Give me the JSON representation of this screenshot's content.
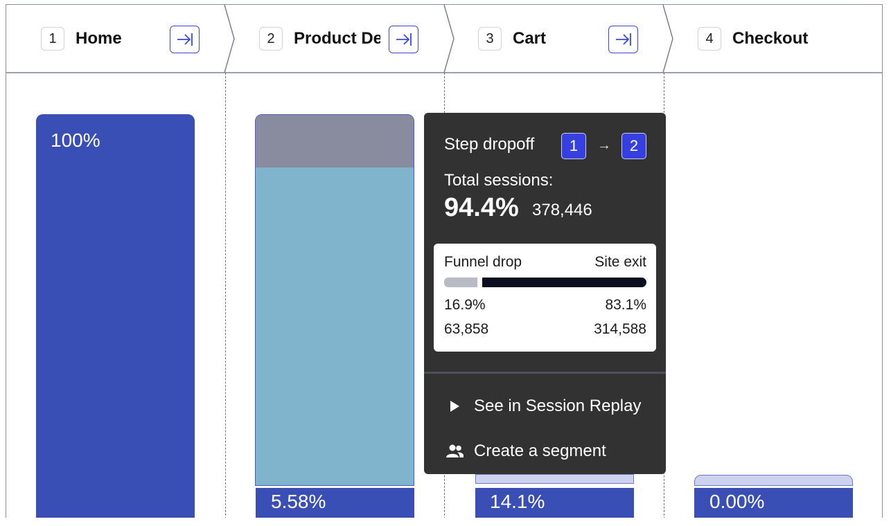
{
  "steps": [
    {
      "num": "1",
      "title": "Home"
    },
    {
      "num": "2",
      "title": "Product Details"
    },
    {
      "num": "3",
      "title": "Cart"
    },
    {
      "num": "4",
      "title": "Checkout"
    }
  ],
  "bars": {
    "home_label": "100%",
    "product_details_label": "5.58%",
    "cart_label": "14.1%",
    "checkout_label": "0.00%"
  },
  "tooltip": {
    "title": "Step dropoff",
    "from_step": "1",
    "arrow": "→",
    "to_step": "2",
    "total_label": "Total sessions:",
    "total_pct": "94.4%",
    "total_count": "378,446",
    "breakdown": {
      "left_label": "Funnel drop",
      "right_label": "Site exit",
      "left_pct": "16.9%",
      "right_pct": "83.1%",
      "left_count": "63,858",
      "right_count": "314,588",
      "left_fraction": 0.169,
      "right_fraction": 0.831
    },
    "actions": [
      {
        "label": "See in Session Replay",
        "icon": "play-icon"
      },
      {
        "label": "Create a segment",
        "icon": "people-icon"
      }
    ]
  },
  "colors": {
    "bar_primary": "#3a4fb6",
    "bar_light": "#7fb4cc",
    "bar_dropoff": "#898b9e",
    "tooltip_bg": "#323232",
    "badge": "#3640e0",
    "accent_outline": "#3a48d4"
  }
}
